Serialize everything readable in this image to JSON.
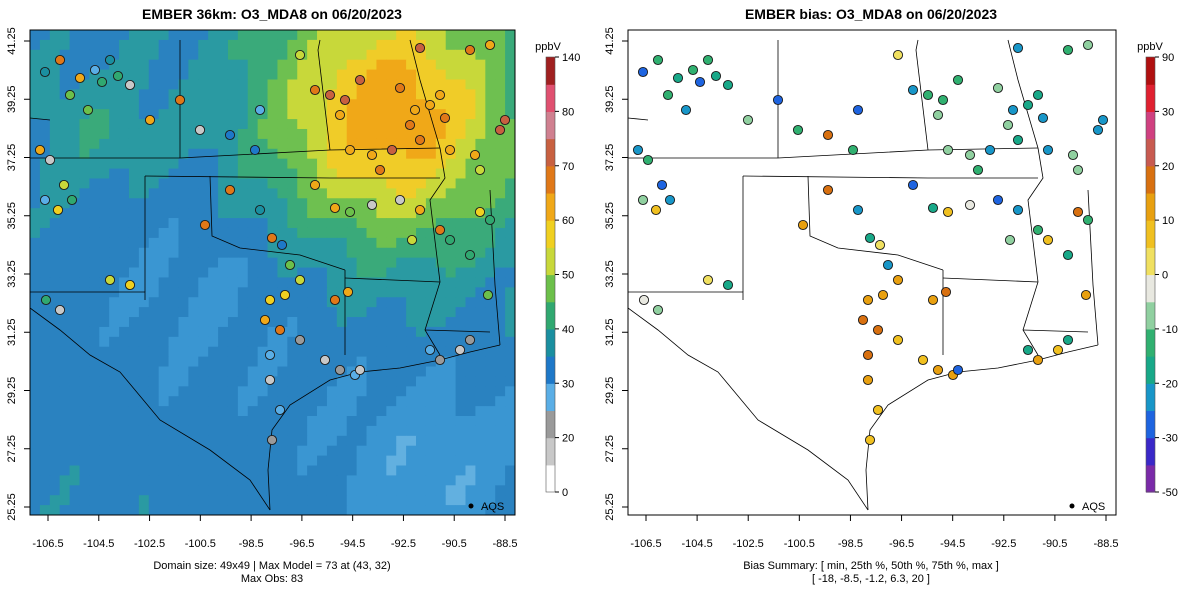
{
  "left_panel": {
    "title": "EMBER 36km: O3_MDA8 on 06/20/2023",
    "footer_line1": "Domain size: 49x49 | Max Model = 73 at (43, 32)",
    "footer_line2": "Max Obs: 83",
    "legend_label": "AQS",
    "colorbar": {
      "unit": "ppbV",
      "tick_labels": [
        "0",
        "20",
        "30",
        "40",
        "50",
        "60",
        "70",
        "80",
        "140"
      ],
      "tick_values": [
        0,
        20,
        30,
        40,
        50,
        60,
        70,
        80,
        140
      ],
      "colors": [
        "#ffffff",
        "#c8c8c8",
        "#9a9a9a",
        "#5aaee6",
        "#1e78c8",
        "#1a8fa0",
        "#30a870",
        "#6cc04a",
        "#c8d83a",
        "#f0d020",
        "#f0a818",
        "#e07818",
        "#c86040",
        "#d08090",
        "#e05070",
        "#a02020"
      ]
    }
  },
  "right_panel": {
    "title": "EMBER bias: O3_MDA8 on 06/20/2023",
    "footer_line1": "Bias Summary: [ min, 25th %, 50th %, 75th %, max ]",
    "footer_line2": "[ -18,   -8.5,   -1.2,   6.3,   20 ]",
    "legend_label": "AQS",
    "colorbar": {
      "unit": "ppbV",
      "tick_labels": [
        "-50",
        "-30",
        "-20",
        "-10",
        "0",
        "10",
        "20",
        "30",
        "90"
      ],
      "tick_values": [
        -50,
        -30,
        -20,
        -10,
        0,
        10,
        20,
        30,
        90
      ],
      "colors": [
        "#7a2aa8",
        "#3a28c8",
        "#1e64e0",
        "#1896c8",
        "#18a888",
        "#30b070",
        "#90d0a0",
        "#e8e8e0",
        "#f0e060",
        "#f0c020",
        "#e8a010",
        "#d87010",
        "#c85a50",
        "#d04080",
        "#e02030",
        "#b01010"
      ]
    }
  },
  "map": {
    "lon_ticks": [
      "-106.5",
      "-104.5",
      "-102.5",
      "-100.5",
      "-98.5",
      "-96.5",
      "-94.5",
      "-92.5",
      "-90.5",
      "-88.5"
    ],
    "lat_ticks": [
      "25.25",
      "27.25",
      "29.25",
      "31.25",
      "33.25",
      "35.25",
      "37.25",
      "39.25",
      "41.25"
    ]
  },
  "bias_summary": {
    "min": -18,
    "p25": -8.5,
    "p50": -1.2,
    "p75": 6.3,
    "max": 20
  }
}
